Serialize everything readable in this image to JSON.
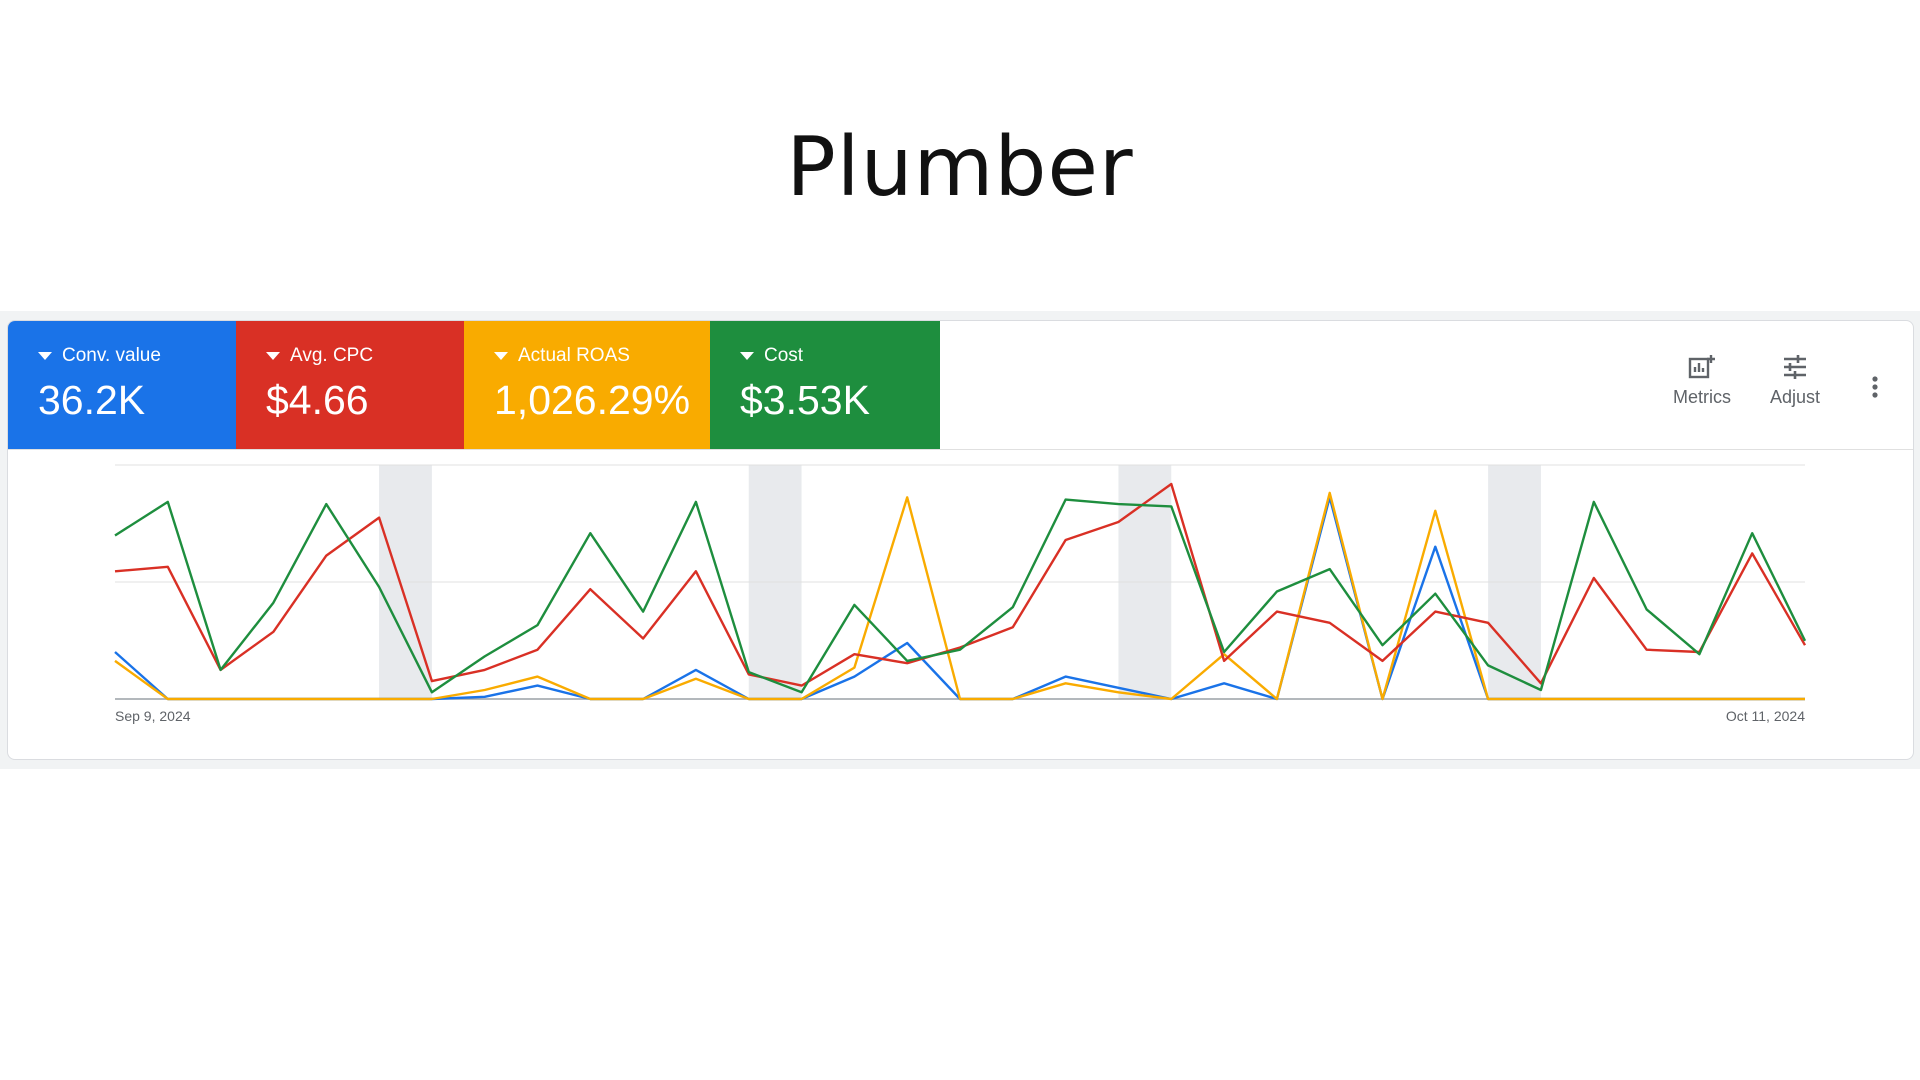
{
  "page": {
    "title": "Plumber"
  },
  "colors": {
    "blue": "#1a73e8",
    "red": "#d93025",
    "yellow": "#f9ab00",
    "green": "#1e8e3e"
  },
  "metrics": [
    {
      "label": "Conv. value",
      "value": "36.2K",
      "color": "#1a73e8"
    },
    {
      "label": "Avg. CPC",
      "value": "$4.66",
      "color": "#d93025"
    },
    {
      "label": "Actual ROAS",
      "value": "1,026.29%",
      "color": "#f9ab00"
    },
    {
      "label": "Cost",
      "value": "$3.53K",
      "color": "#1e8e3e"
    }
  ],
  "toolbar": {
    "metrics_label": "Metrics",
    "adjust_label": "Adjust",
    "metrics_icon": "chart-add-icon",
    "adjust_icon": "sliders-icon",
    "more_icon": "more-vert-icon"
  },
  "chart_data": {
    "type": "line",
    "x_start_label": "Sep 9, 2024",
    "x_end_label": "Oct 11, 2024",
    "num_points": 33,
    "y_range": [
      0,
      1
    ],
    "weekend_shading_index_ranges": [
      [
        5,
        6
      ],
      [
        12,
        13
      ],
      [
        19,
        20
      ],
      [
        26,
        27
      ]
    ],
    "grid": "horizontal",
    "series": [
      {
        "color": "#1a73e8",
        "values": [
          0.21,
          0,
          0,
          0,
          0,
          0,
          0,
          0.01,
          0.06,
          0,
          0,
          0.13,
          0,
          0,
          0.1,
          0.25,
          0,
          0,
          0.1,
          0.05,
          0,
          0.07,
          0,
          0.9,
          0,
          0.68,
          0,
          0,
          0,
          0,
          0,
          0,
          0
        ]
      },
      {
        "color": "#f9ab00",
        "values": [
          0.17,
          0,
          0,
          0,
          0,
          0,
          0,
          0.04,
          0.1,
          0,
          0,
          0.09,
          0,
          0,
          0.14,
          0.9,
          0,
          0,
          0.07,
          0.03,
          0,
          0.2,
          0,
          0.92,
          0,
          0.84,
          0,
          0,
          0,
          0,
          0,
          0,
          0
        ]
      },
      {
        "color": "#d93025",
        "values": [
          0.57,
          0.59,
          0.13,
          0.3,
          0.64,
          0.81,
          0.08,
          0.13,
          0.22,
          0.49,
          0.27,
          0.57,
          0.11,
          0.06,
          0.2,
          0.16,
          0.23,
          0.32,
          0.71,
          0.79,
          0.96,
          0.17,
          0.39,
          0.34,
          0.17,
          0.39,
          0.34,
          0.07,
          0.54,
          0.22,
          0.21,
          0.65,
          0.24
        ]
      },
      {
        "color": "#1e8e3e",
        "values": [
          0.73,
          0.88,
          0.13,
          0.43,
          0.87,
          0.5,
          0.03,
          0.19,
          0.33,
          0.74,
          0.39,
          0.88,
          0.12,
          0.03,
          0.42,
          0.17,
          0.22,
          0.41,
          0.89,
          0.87,
          0.86,
          0.21,
          0.48,
          0.58,
          0.24,
          0.47,
          0.15,
          0.04,
          0.88,
          0.4,
          0.2,
          0.74,
          0.26
        ]
      }
    ]
  }
}
